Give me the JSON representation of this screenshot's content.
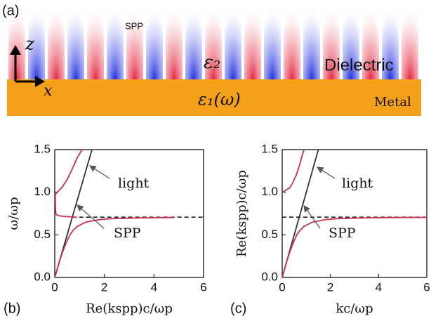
{
  "panel_a": {
    "label": "(a)",
    "spp": "SPP",
    "z": "z",
    "x": "x",
    "eps2": "ε₂",
    "dielectric": "Dielectric",
    "eps1": "ε₁(ω)",
    "metal": "Metal"
  },
  "chart_data": [
    {
      "type": "line",
      "panel_label": "(b)",
      "xlabel": "Re(kspp)c/ωp",
      "ylabel": "ω/ωp",
      "xlim": [
        0,
        6
      ],
      "ylim": [
        0,
        1.5
      ],
      "xticks": [
        0,
        2,
        4,
        6
      ],
      "yticks": [
        {
          "value": 0,
          "label": "0.0"
        },
        0.5,
        {
          "value": 1,
          "label": "1.0"
        },
        1.5
      ],
      "annotations": [
        "light",
        "SPP"
      ],
      "series": [
        {
          "color": "#333333",
          "x": [
            0,
            1.5
          ],
          "values": [
            0,
            1.5
          ]
        },
        {
          "color": "#222222",
          "dash": true,
          "x": [
            0.7,
            6
          ],
          "values": [
            0.707,
            0.707
          ]
        },
        {
          "color": "#c8324f",
          "x": [
            0,
            0.1,
            0.2,
            0.32,
            0.45,
            0.61,
            0.73,
            0.91,
            1.26,
            1.82,
            2.28,
            3.54,
            4.8
          ],
          "values": [
            0,
            0.1,
            0.2,
            0.3,
            0.4,
            0.5,
            0.55,
            0.6,
            0.65,
            0.68,
            0.69,
            0.7,
            0.703
          ]
        },
        {
          "color": "#c8324f",
          "x": [
            0.02,
            0.1,
            0.3,
            0.5,
            0.7,
            0.9,
            1.1
          ],
          "values": [
            0.97,
            1.0,
            1.06,
            1.15,
            1.27,
            1.4,
            1.5
          ]
        },
        {
          "color": "#c8324f",
          "x": [
            0.02,
            0.03,
            0.05,
            0.15,
            0.4,
            0.7,
            0.9
          ],
          "values": [
            0.97,
            0.8,
            0.74,
            0.725,
            0.715,
            0.71,
            0.705
          ]
        }
      ]
    },
    {
      "type": "line",
      "panel_label": "(c)",
      "xlabel": "kc/ωp",
      "ylabel": "Re(kspp)c/ωp",
      "xlim": [
        0,
        6
      ],
      "ylim": [
        0,
        1.5
      ],
      "xticks": [
        0,
        2,
        4,
        6
      ],
      "yticks": [
        {
          "value": 0,
          "label": "0.0"
        },
        0.5,
        {
          "value": 1,
          "label": "1.0"
        },
        1.5
      ],
      "annotations": [
        "light",
        "SPP"
      ],
      "series": [
        {
          "color": "#333333",
          "x": [
            0,
            1.5
          ],
          "values": [
            0,
            1.5
          ]
        },
        {
          "color": "#222222",
          "dash": true,
          "x": [
            0,
            6
          ],
          "values": [
            0.707,
            0.707
          ]
        },
        {
          "color": "#c8324f",
          "x": [
            0,
            0.1,
            0.2,
            0.32,
            0.45,
            0.61,
            0.73,
            0.91,
            1.26,
            1.82,
            2.28,
            3.54,
            4.64,
            6
          ],
          "values": [
            0,
            0.1,
            0.2,
            0.3,
            0.4,
            0.5,
            0.55,
            0.6,
            0.65,
            0.68,
            0.69,
            0.7,
            0.703,
            0.705
          ]
        },
        {
          "color": "#c8324f",
          "x": [
            0,
            0.31,
            0.42,
            0.58,
            0.7,
            0.8,
            0.9
          ],
          "values": [
            1.0,
            1.05,
            1.1,
            1.2,
            1.3,
            1.4,
            1.5
          ]
        }
      ]
    }
  ]
}
